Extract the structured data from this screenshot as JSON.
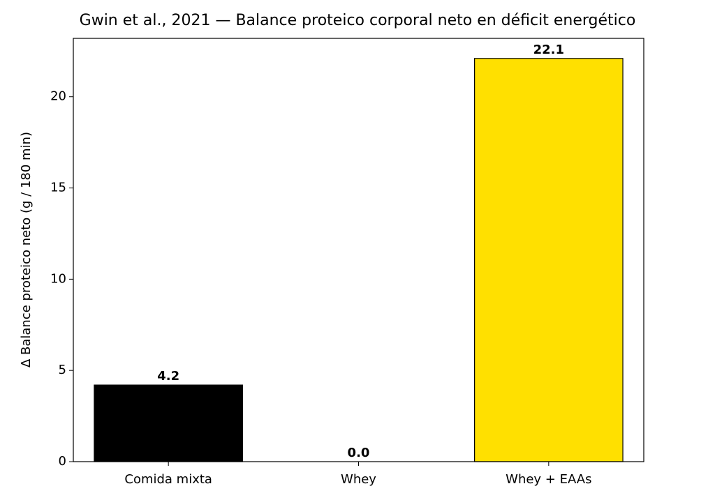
{
  "chart_data": {
    "type": "bar",
    "title": "Gwin et al., 2021 — Balance proteico corporal neto en déficit energético",
    "y_label": "Δ Balance proteico neto (g / 180 min)",
    "categories": [
      "Comida mixta",
      "Whey",
      "Whey + EAAs"
    ],
    "values": [
      4.2,
      0,
      22.1
    ],
    "value_labels": [
      "4.2",
      "0.0",
      "22.1"
    ],
    "colors": [
      "#000000",
      "#ffffff",
      "#ffe000"
    ],
    "edge_color": "#000000",
    "ylim": [
      0,
      23.2
    ],
    "yticks": [
      0,
      5,
      10,
      15,
      20
    ],
    "grid": false
  }
}
